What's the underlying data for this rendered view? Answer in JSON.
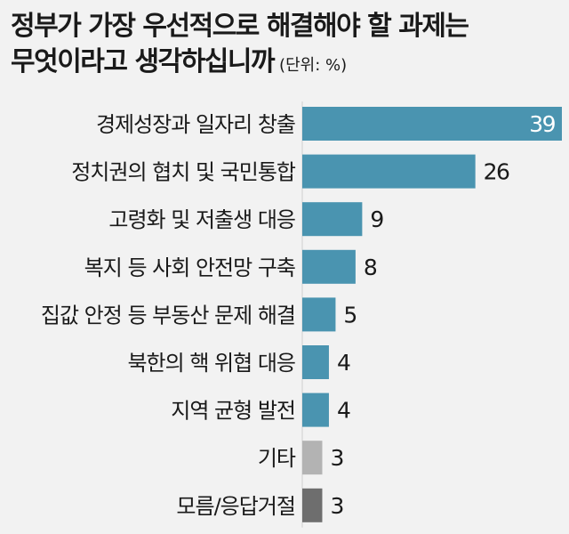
{
  "title": {
    "line1": "정부가 가장 우선적으로 해결해야 할 과제는",
    "line2": "무엇이라고 생각하십니까",
    "unit": "(단위: %)"
  },
  "colors": {
    "main": "#4a94b0",
    "other": "#b3b3b3",
    "unknown": "#6e6e6e",
    "background": "#f2f2f2"
  },
  "chart_data": {
    "type": "bar",
    "orientation": "horizontal",
    "categories": [
      "경제성장과 일자리 창출",
      "정치권의 협치 및 국민통합",
      "고령화 및 저출생 대응",
      "복지 등 사회 안전망 구축",
      "집값 안정 등 부동산 문제 해결",
      "북한의 핵 위협 대응",
      "지역 균형 발전",
      "기타",
      "모름/응답거절"
    ],
    "values": [
      39,
      26,
      9,
      8,
      5,
      4,
      4,
      3,
      3
    ],
    "bar_colors": [
      "main",
      "main",
      "main",
      "main",
      "main",
      "main",
      "main",
      "other",
      "unknown"
    ],
    "xlim": [
      0,
      39
    ],
    "grid": false,
    "legend": "none"
  }
}
